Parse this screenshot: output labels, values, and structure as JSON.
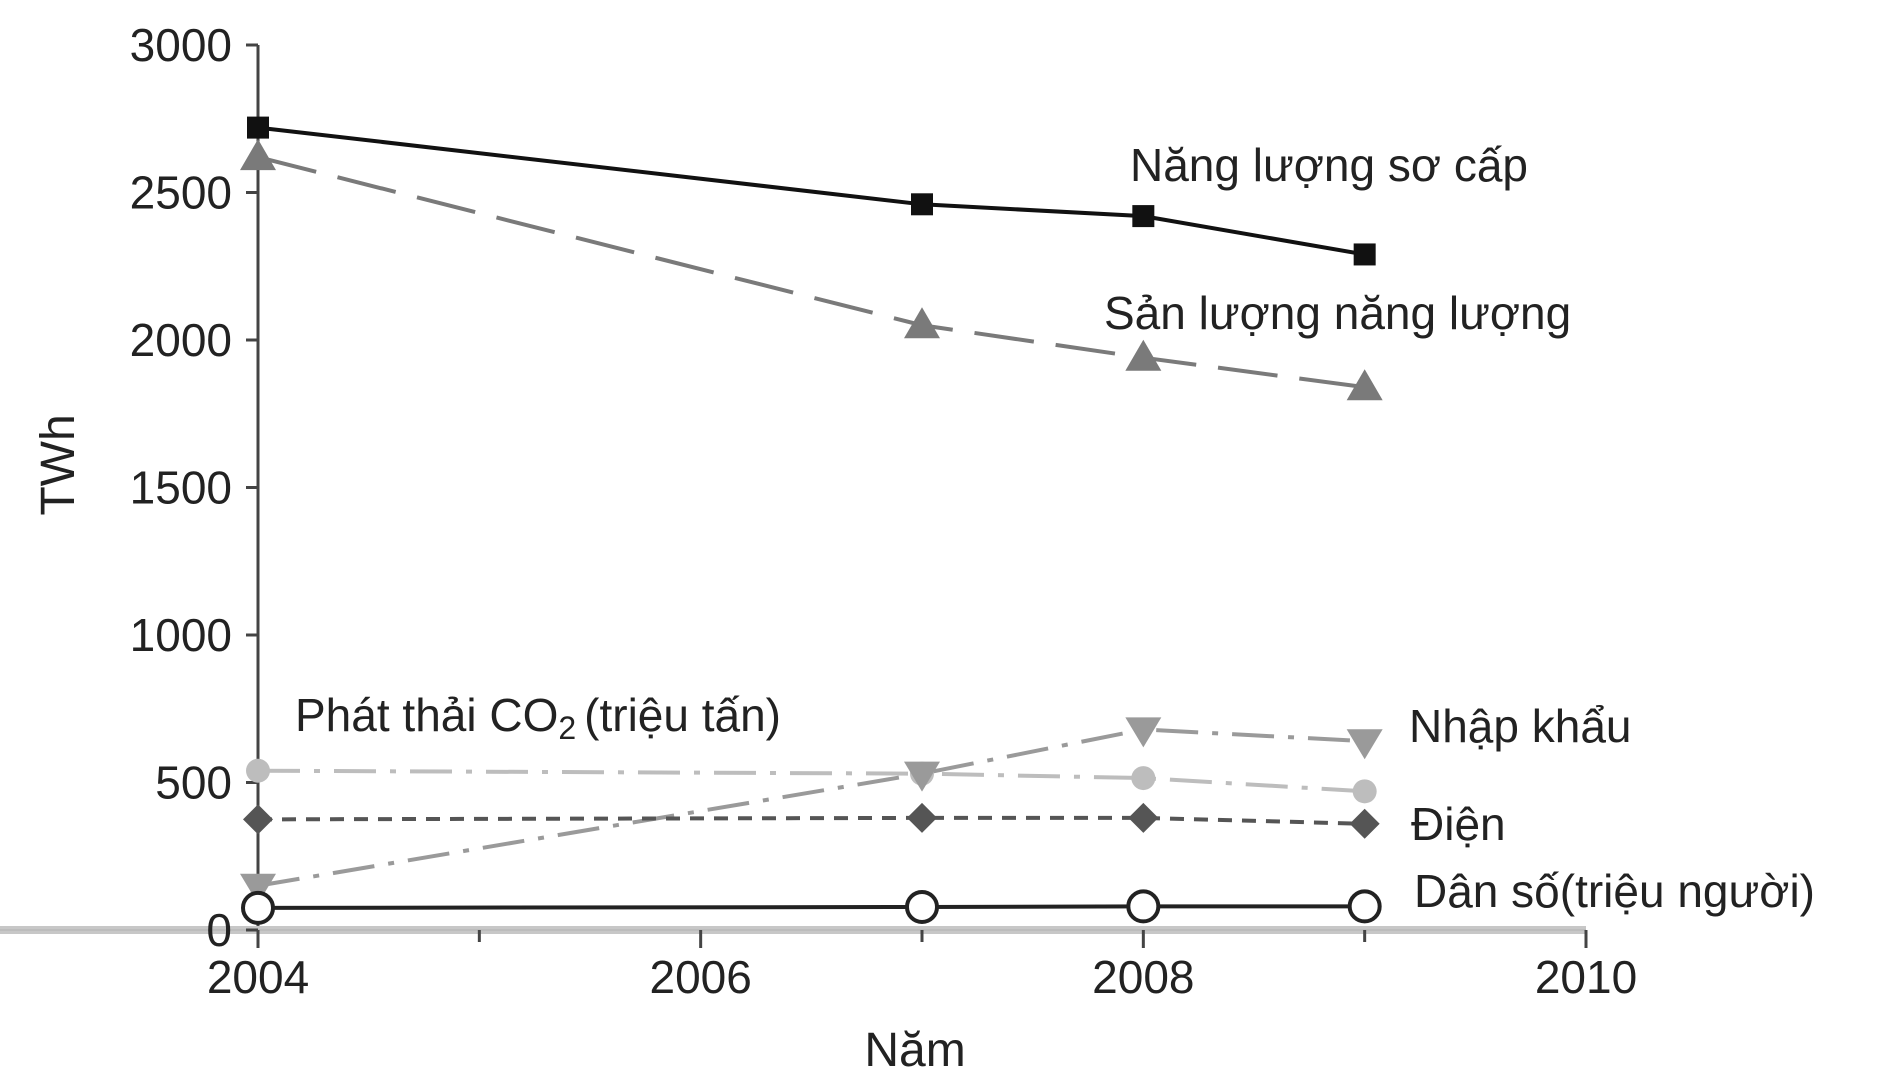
{
  "chart_data": {
    "type": "line",
    "xlabel": "Năm",
    "ylabel": "TWh",
    "xlim": [
      2004,
      2010
    ],
    "ylim": [
      0,
      3000
    ],
    "x_ticks": [
      2004,
      2006,
      2008,
      2010
    ],
    "y_ticks": [
      0,
      500,
      1000,
      1500,
      2000,
      2500,
      3000
    ],
    "x_tick_labels": [
      "2004",
      "2006",
      "2008",
      "2010"
    ],
    "y_tick_labels": [
      "0",
      "500",
      "1000",
      "1500",
      "2000",
      "2500",
      "3000"
    ],
    "grid": false,
    "legend": "none",
    "series": [
      {
        "key": "primary_energy",
        "label": "Năng lượng sơ cấp",
        "x": [
          2004,
          2007,
          2008,
          2009
        ],
        "values": [
          2720,
          2460,
          2420,
          2290
        ],
        "color": "#111111",
        "marker": "square",
        "line_style": "solid"
      },
      {
        "key": "energy_production",
        "label": "Sản lượng năng lượng",
        "x": [
          2004,
          2007,
          2008,
          2009
        ],
        "values": [
          2620,
          2050,
          1940,
          1840
        ],
        "color": "#7a7a7a",
        "marker": "triangle-up",
        "line_style": "long-dash"
      },
      {
        "key": "co2",
        "label_main": "Phát thải CO",
        "label_sub": "2",
        "label_tail": "(triệu tấn)",
        "x": [
          2004,
          2007,
          2008,
          2009
        ],
        "values": [
          540,
          530,
          515,
          470
        ],
        "color": "#bdbdbd",
        "marker": "circle-filled",
        "line_style": "dash-dot"
      },
      {
        "key": "imports",
        "label": "Nhập khẩu",
        "x": [
          2004,
          2007,
          2008,
          2009
        ],
        "values": [
          150,
          530,
          680,
          640
        ],
        "color": "#9a9a9a",
        "marker": "triangle-down",
        "line_style": "dash-dot"
      },
      {
        "key": "electricity",
        "label": "Điện",
        "x": [
          2004,
          2007,
          2008,
          2009
        ],
        "values": [
          375,
          380,
          380,
          360
        ],
        "color": "#555555",
        "marker": "diamond",
        "line_style": "short-dash"
      },
      {
        "key": "population",
        "label": "Dân số(triệu người)",
        "x": [
          2004,
          2007,
          2008,
          2009
        ],
        "values": [
          75,
          78,
          80,
          80
        ],
        "color": "#222222",
        "marker": "circle-open",
        "line_style": "solid"
      }
    ]
  }
}
